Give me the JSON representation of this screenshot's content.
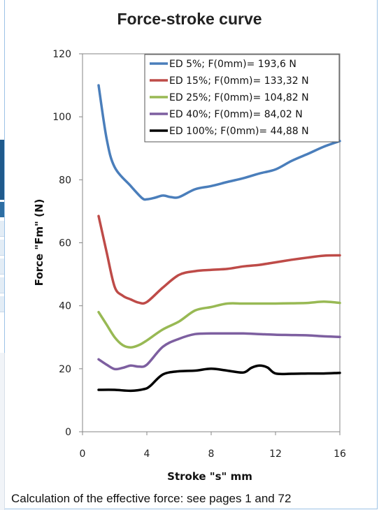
{
  "chart_data": {
    "type": "line",
    "title": "Force-stroke curve",
    "xlabel": "Stroke \"s\" mm",
    "ylabel": "Force \"Fm\" (N)",
    "xlim": [
      0,
      16
    ],
    "ylim": [
      0,
      120
    ],
    "xticks": [
      0,
      4,
      8,
      12,
      16
    ],
    "yticks": [
      0,
      20,
      40,
      60,
      80,
      100,
      120
    ],
    "grid": false,
    "legend_position": "top-right",
    "series": [
      {
        "name": "ED 5%; F(0mm)= 193,6 N",
        "color": "#4a7ebb",
        "points": [
          [
            1,
            110
          ],
          [
            1.5,
            93
          ],
          [
            2,
            84
          ],
          [
            3,
            78
          ],
          [
            3.7,
            74.2
          ],
          [
            4,
            73.8
          ],
          [
            4.5,
            74.3
          ],
          [
            5,
            75
          ],
          [
            5.5,
            74.5
          ],
          [
            6,
            74.5
          ],
          [
            7,
            77
          ],
          [
            8,
            78
          ],
          [
            9,
            79.3
          ],
          [
            10,
            80.5
          ],
          [
            11,
            82
          ],
          [
            12,
            83.3
          ],
          [
            13,
            86
          ],
          [
            14,
            88.2
          ],
          [
            15,
            90.5
          ],
          [
            16,
            92.3
          ]
        ]
      },
      {
        "name": "ED 15%; F(0mm)= 133,32 N",
        "color": "#be4b48",
        "points": [
          [
            1,
            68.5
          ],
          [
            1.5,
            57
          ],
          [
            2,
            46
          ],
          [
            2.5,
            43.2
          ],
          [
            3,
            42
          ],
          [
            3.5,
            41
          ],
          [
            4,
            41.2
          ],
          [
            5,
            45.8
          ],
          [
            6,
            49.8
          ],
          [
            7,
            51
          ],
          [
            8,
            51.4
          ],
          [
            9,
            51.7
          ],
          [
            10,
            52.5
          ],
          [
            11,
            53
          ],
          [
            12,
            53.8
          ],
          [
            13,
            54.6
          ],
          [
            14,
            55.3
          ],
          [
            15,
            55.9
          ],
          [
            16,
            56
          ]
        ]
      },
      {
        "name": "ED 25%; F(0mm)= 104,82 N",
        "color": "#98b954",
        "points": [
          [
            1,
            38
          ],
          [
            1.5,
            34
          ],
          [
            2,
            30
          ],
          [
            2.5,
            27.5
          ],
          [
            3,
            26.8
          ],
          [
            3.5,
            27.5
          ],
          [
            4,
            29
          ],
          [
            5,
            32.5
          ],
          [
            6,
            35
          ],
          [
            7,
            38.5
          ],
          [
            8,
            39.6
          ],
          [
            9,
            40.7
          ],
          [
            10,
            40.7
          ],
          [
            11,
            40.7
          ],
          [
            12,
            40.7
          ],
          [
            13,
            40.8
          ],
          [
            14,
            40.9
          ],
          [
            15,
            41.3
          ],
          [
            16,
            40.9
          ]
        ]
      },
      {
        "name": "ED 40%; F(0mm)= 84,02 N",
        "color": "#7d5fa0",
        "points": [
          [
            1,
            23
          ],
          [
            1.5,
            21.3
          ],
          [
            2,
            19.9
          ],
          [
            2.5,
            20.3
          ],
          [
            3,
            21
          ],
          [
            3.5,
            20.7
          ],
          [
            4,
            21.3
          ],
          [
            5,
            27
          ],
          [
            6,
            29.5
          ],
          [
            7,
            31
          ],
          [
            8,
            31.2
          ],
          [
            9,
            31.2
          ],
          [
            10,
            31.2
          ],
          [
            11,
            31
          ],
          [
            12,
            30.8
          ],
          [
            13,
            30.7
          ],
          [
            14,
            30.6
          ],
          [
            15,
            30.3
          ],
          [
            16,
            30.1
          ]
        ]
      },
      {
        "name": "ED 100%; F(0mm)= 44,88 N",
        "color": "#000000",
        "points": [
          [
            1,
            13.3
          ],
          [
            2,
            13.3
          ],
          [
            3,
            13
          ],
          [
            3.8,
            13.5
          ],
          [
            4.2,
            14.5
          ],
          [
            5,
            18.2
          ],
          [
            6,
            19.2
          ],
          [
            7,
            19.4
          ],
          [
            8,
            20
          ],
          [
            9,
            19.4
          ],
          [
            10,
            18.8
          ],
          [
            10.5,
            20.3
          ],
          [
            11,
            21
          ],
          [
            11.5,
            20.4
          ],
          [
            12,
            18.5
          ],
          [
            13,
            18.4
          ],
          [
            14,
            18.5
          ],
          [
            15,
            18.5
          ],
          [
            16,
            18.7
          ]
        ]
      }
    ]
  },
  "caption": "Calculation of the effective force: see pages 1 and 72"
}
